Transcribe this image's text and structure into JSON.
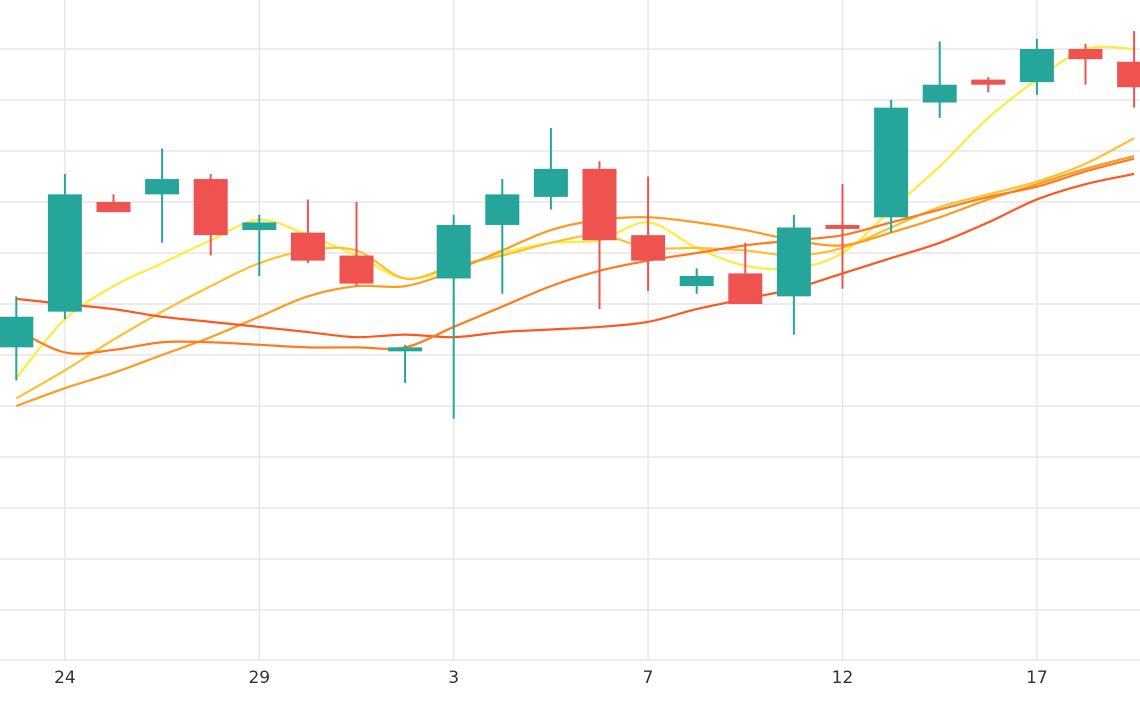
{
  "chart_data": {
    "type": "candlestick",
    "x_tick_labels": [
      "24",
      "29",
      "3",
      "7",
      "12",
      "17"
    ],
    "x_tick_index": [
      1,
      5,
      9,
      13,
      17,
      21
    ],
    "grid": true,
    "legend": "none",
    "up_color": "#26a69a",
    "down_color": "#ef5350",
    "ylim": [
      0,
      100
    ],
    "candles": [
      {
        "o": 51.5,
        "h": 61.5,
        "l": 45.0,
        "c": 57.5
      },
      {
        "o": 58.5,
        "h": 85.5,
        "l": 57.0,
        "c": 81.5
      },
      {
        "o": 80.0,
        "h": 81.5,
        "l": 78.0,
        "c": 78.0
      },
      {
        "o": 81.5,
        "h": 90.5,
        "l": 72.0,
        "c": 84.5
      },
      {
        "o": 84.5,
        "h": 85.5,
        "l": 69.5,
        "c": 73.5
      },
      {
        "o": 74.5,
        "h": 77.5,
        "l": 65.5,
        "c": 76.0
      },
      {
        "o": 74.0,
        "h": 80.5,
        "l": 68.0,
        "c": 68.5
      },
      {
        "o": 69.5,
        "h": 80.0,
        "l": 63.5,
        "c": 64.0
      },
      {
        "o": 51.5,
        "h": 52.0,
        "l": 44.5,
        "c": 51.5
      },
      {
        "o": 65.0,
        "h": 77.5,
        "l": 37.5,
        "c": 75.5
      },
      {
        "o": 75.5,
        "h": 84.5,
        "l": 62.0,
        "c": 81.5
      },
      {
        "o": 81.0,
        "h": 94.5,
        "l": 78.5,
        "c": 86.5
      },
      {
        "o": 86.5,
        "h": 88.0,
        "l": 59.0,
        "c": 72.5
      },
      {
        "o": 73.5,
        "h": 85.0,
        "l": 62.5,
        "c": 68.5
      },
      {
        "o": 63.5,
        "h": 67.0,
        "l": 62.0,
        "c": 65.5
      },
      {
        "o": 66.0,
        "h": 72.0,
        "l": 60.0,
        "c": 60.0
      },
      {
        "o": 61.5,
        "h": 77.5,
        "l": 54.0,
        "c": 75.0
      },
      {
        "o": 75.5,
        "h": 83.5,
        "l": 63.0,
        "c": 75.0
      },
      {
        "o": 77.0,
        "h": 100.0,
        "l": 74.0,
        "c": 98.5
      },
      {
        "o": 99.5,
        "h": 111.5,
        "l": 96.5,
        "c": 103.0
      },
      {
        "o": 104.0,
        "h": 104.5,
        "l": 101.5,
        "c": 103.0
      },
      {
        "o": 103.5,
        "h": 112.0,
        "l": 101.0,
        "c": 110.0
      },
      {
        "o": 110.0,
        "h": 111.0,
        "l": 103.0,
        "c": 108.0
      },
      {
        "o": 107.5,
        "h": 113.5,
        "l": 98.5,
        "c": 102.5
      }
    ],
    "moving_averages": [
      {
        "color": "#ffeb3b",
        "values": [
          45.5,
          57.0,
          63.5,
          68.0,
          72.5,
          76.5,
          73.5,
          69.5,
          65.0,
          67.0,
          70.0,
          72.0,
          72.5,
          76.0,
          71.0,
          67.5,
          67.0,
          70.0,
          78.5,
          87.0,
          96.5,
          104.0,
          110.0,
          110.0
        ]
      },
      {
        "color": "#ffc02e",
        "values": [
          41.5,
          47.0,
          53.0,
          58.5,
          63.5,
          68.0,
          70.5,
          70.5,
          65.0,
          67.5,
          69.5,
          72.0,
          73.5,
          71.0,
          71.0,
          70.5,
          69.5,
          71.0,
          75.0,
          79.0,
          81.5,
          84.0,
          87.5,
          92.5
        ]
      },
      {
        "color": "#ff9a21",
        "values": [
          40.0,
          43.5,
          46.5,
          50.0,
          53.5,
          57.5,
          61.5,
          63.5,
          63.5,
          66.5,
          70.5,
          74.5,
          76.5,
          77.0,
          76.0,
          74.5,
          72.5,
          71.5,
          74.0,
          77.0,
          80.5,
          83.5,
          86.5,
          89.0
        ]
      },
      {
        "color": "#ff5722",
        "values": [
          61.0,
          60.0,
          59.0,
          57.5,
          56.5,
          55.5,
          54.5,
          53.5,
          54.0,
          53.5,
          54.5,
          55.0,
          55.5,
          56.5,
          59.0,
          61.0,
          63.0,
          66.0,
          69.0,
          72.0,
          76.0,
          80.5,
          83.5,
          85.5
        ]
      },
      {
        "color": "#ff7a1f",
        "values": [
          55.0,
          50.5,
          51.0,
          52.5,
          52.5,
          52.0,
          51.5,
          51.5,
          51.5,
          55.5,
          59.5,
          63.5,
          66.5,
          68.5,
          70.0,
          71.5,
          72.5,
          73.5,
          76.0,
          78.5,
          81.0,
          83.0,
          86.0,
          88.5
        ]
      }
    ]
  }
}
